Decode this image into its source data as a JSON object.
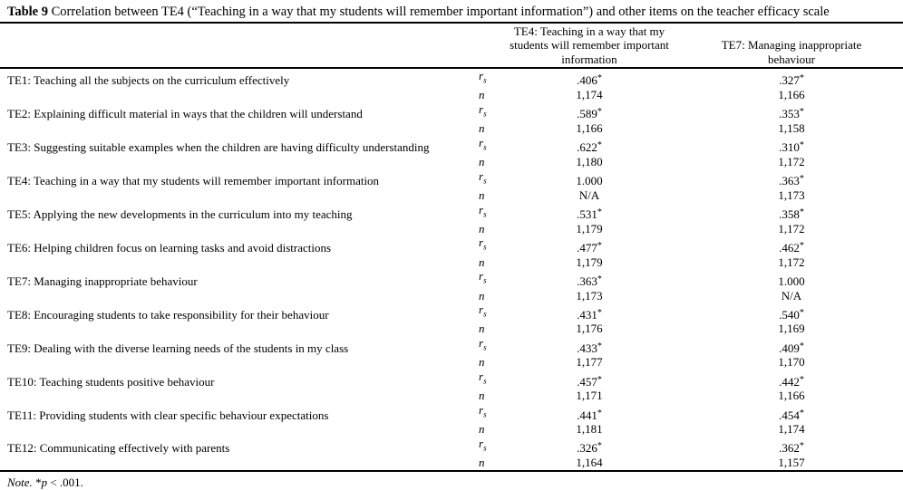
{
  "title": {
    "label": "Table 9",
    "text": " Correlation between TE4 (“Teaching in a way that my students will remember important information”) and other items on the teacher efficacy scale"
  },
  "header": {
    "item_col": "",
    "stat_col": "",
    "te4": "TE4: Teaching in a way that my students will remember important information",
    "te7": "TE7: Managing inappropriate behaviour"
  },
  "stat_labels": {
    "r_base": "r",
    "r_sub": "s",
    "n": "n"
  },
  "rows": [
    {
      "item": "TE1: Teaching all the subjects on the curriculum effectively",
      "te4": {
        "r": ".406",
        "star": "*",
        "n": "1,174"
      },
      "te7": {
        "r": ".327",
        "star": "*",
        "n": "1,166"
      }
    },
    {
      "item": "TE2: Explaining difficult material in ways that the children will understand",
      "te4": {
        "r": ".589",
        "star": "*",
        "n": "1,166"
      },
      "te7": {
        "r": ".353",
        "star": "*",
        "n": "1,158"
      }
    },
    {
      "item": "TE3: Suggesting suitable examples when the children are having difficulty understanding",
      "te4": {
        "r": ".622",
        "star": "*",
        "n": "1,180"
      },
      "te7": {
        "r": ".310",
        "star": "*",
        "n": "1,172"
      }
    },
    {
      "item": "TE4: Teaching in a way that my students will remember important information",
      "te4": {
        "r": "1.000",
        "star": "",
        "n": "N/A"
      },
      "te7": {
        "r": ".363",
        "star": "*",
        "n": "1,173"
      }
    },
    {
      "item": "TE5: Applying the new developments in the curriculum into my teaching",
      "te4": {
        "r": ".531",
        "star": "*",
        "n": "1,179"
      },
      "te7": {
        "r": ".358",
        "star": "*",
        "n": "1,172"
      }
    },
    {
      "item": "TE6: Helping children focus on learning tasks and avoid distractions",
      "te4": {
        "r": ".477",
        "star": "*",
        "n": "1,179"
      },
      "te7": {
        "r": ".462",
        "star": "*",
        "n": "1,172"
      }
    },
    {
      "item": "TE7: Managing inappropriate behaviour",
      "te4": {
        "r": ".363",
        "star": "*",
        "n": "1,173"
      },
      "te7": {
        "r": "1.000",
        "star": "",
        "n": "N/A"
      }
    },
    {
      "item": "TE8: Encouraging students to take responsibility for their behaviour",
      "te4": {
        "r": ".431",
        "star": "*",
        "n": "1,176"
      },
      "te7": {
        "r": ".540",
        "star": "*",
        "n": "1,169"
      }
    },
    {
      "item": "TE9: Dealing with the diverse learning needs of the students in my class",
      "te4": {
        "r": ".433",
        "star": "*",
        "n": "1,177"
      },
      "te7": {
        "r": ".409",
        "star": "*",
        "n": "1,170"
      }
    },
    {
      "item": "TE10: Teaching students positive behaviour",
      "te4": {
        "r": ".457",
        "star": "*",
        "n": "1,171"
      },
      "te7": {
        "r": ".442",
        "star": "*",
        "n": "1,166"
      }
    },
    {
      "item": "TE11: Providing students with clear specific behaviour expectations",
      "te4": {
        "r": ".441",
        "star": "*",
        "n": "1,181"
      },
      "te7": {
        "r": ".454",
        "star": "*",
        "n": "1,174"
      }
    },
    {
      "item": "TE12: Communicating effectively with parents",
      "te4": {
        "r": ".326",
        "star": "*",
        "n": "1,164"
      },
      "te7": {
        "r": ".362",
        "star": "*",
        "n": "1,157"
      }
    }
  ],
  "note": {
    "prefix": "Note.",
    "star": " *",
    "p": "p",
    "rest": " < .001."
  }
}
